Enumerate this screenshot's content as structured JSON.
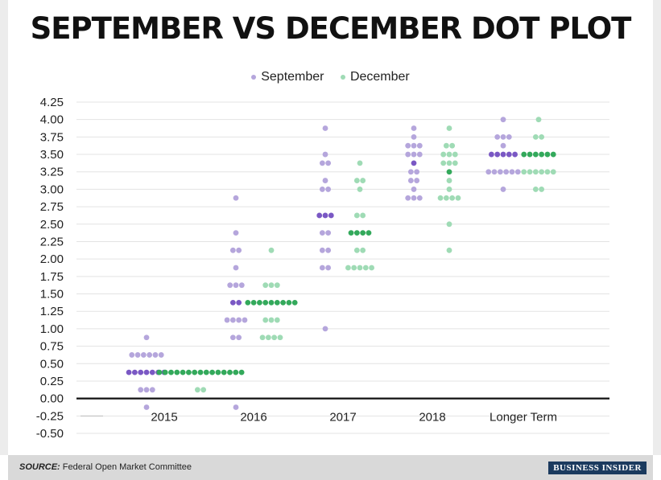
{
  "chart_data": {
    "type": "scatter",
    "title": "SEPTEMBER VS DECEMBER DOT PLOT",
    "ylim": [
      -0.5,
      4.25
    ],
    "yticks": [
      "4.25",
      "4.00",
      "3.75",
      "3.50",
      "3.25",
      "3.00",
      "2.75",
      "2.50",
      "2.25",
      "2.00",
      "1.75",
      "1.50",
      "1.25",
      "1.00",
      "0.75",
      "0.50",
      "0.25",
      "0.00",
      "-0.25",
      "-0.50"
    ],
    "categories": [
      "2015",
      "2016",
      "2017",
      "2018",
      "Longer Term"
    ],
    "grid": true,
    "legend_position": "top-center",
    "series": [
      {
        "name": "September",
        "color": "#b5a6dc",
        "median_color": "#7a58c4",
        "groups": [
          [
            {
              "y": 0.875,
              "n": 1
            },
            {
              "y": 0.625,
              "n": 6
            },
            {
              "y": 0.375,
              "n": 7,
              "median": true
            },
            {
              "y": 0.125,
              "n": 3
            },
            {
              "y": -0.125,
              "n": 1
            }
          ],
          [
            {
              "y": 2.875,
              "n": 1
            },
            {
              "y": 2.375,
              "n": 1
            },
            {
              "y": 2.125,
              "n": 2
            },
            {
              "y": 1.875,
              "n": 1
            },
            {
              "y": 1.625,
              "n": 3
            },
            {
              "y": 1.375,
              "n": 2,
              "median": true
            },
            {
              "y": 1.125,
              "n": 4
            },
            {
              "y": 0.875,
              "n": 2
            },
            {
              "y": -0.125,
              "n": 1
            }
          ],
          [
            {
              "y": 3.875,
              "n": 1
            },
            {
              "y": 3.5,
              "n": 1
            },
            {
              "y": 3.375,
              "n": 2
            },
            {
              "y": 3.125,
              "n": 1
            },
            {
              "y": 3.0,
              "n": 2
            },
            {
              "y": 2.625,
              "n": 3,
              "median": true
            },
            {
              "y": 2.375,
              "n": 2
            },
            {
              "y": 2.125,
              "n": 2
            },
            {
              "y": 1.875,
              "n": 2
            },
            {
              "y": 1.0,
              "n": 1
            }
          ],
          [
            {
              "y": 3.875,
              "n": 1
            },
            {
              "y": 3.75,
              "n": 1
            },
            {
              "y": 3.625,
              "n": 3
            },
            {
              "y": 3.5,
              "n": 3
            },
            {
              "y": 3.375,
              "n": 1,
              "median": true
            },
            {
              "y": 3.25,
              "n": 2
            },
            {
              "y": 3.125,
              "n": 2
            },
            {
              "y": 3.0,
              "n": 1
            },
            {
              "y": 2.875,
              "n": 3
            }
          ],
          [
            {
              "y": 4.0,
              "n": 1
            },
            {
              "y": 3.75,
              "n": 3
            },
            {
              "y": 3.625,
              "n": 1
            },
            {
              "y": 3.5,
              "n": 5,
              "median": true
            },
            {
              "y": 3.25,
              "n": 6
            },
            {
              "y": 3.0,
              "n": 1
            }
          ]
        ]
      },
      {
        "name": "December",
        "color": "#9fdbb5",
        "median_color": "#33a95b",
        "groups": [
          [
            {
              "y": 0.375,
              "n": 15,
              "median": true
            },
            {
              "y": 0.125,
              "n": 2
            }
          ],
          [
            {
              "y": 2.125,
              "n": 1
            },
            {
              "y": 1.625,
              "n": 3
            },
            {
              "y": 1.375,
              "n": 9,
              "median": true
            },
            {
              "y": 1.125,
              "n": 3
            },
            {
              "y": 0.875,
              "n": 4
            }
          ],
          [
            {
              "y": 3.375,
              "n": 1
            },
            {
              "y": 3.125,
              "n": 2
            },
            {
              "y": 3.0,
              "n": 1
            },
            {
              "y": 2.625,
              "n": 2
            },
            {
              "y": 2.375,
              "n": 4,
              "median": true
            },
            {
              "y": 2.125,
              "n": 2
            },
            {
              "y": 1.875,
              "n": 5
            }
          ],
          [
            {
              "y": 3.875,
              "n": 1
            },
            {
              "y": 3.625,
              "n": 2
            },
            {
              "y": 3.5,
              "n": 3
            },
            {
              "y": 3.375,
              "n": 3
            },
            {
              "y": 3.25,
              "n": 1,
              "median": true
            },
            {
              "y": 3.125,
              "n": 1
            },
            {
              "y": 3.0,
              "n": 1
            },
            {
              "y": 2.875,
              "n": 4
            },
            {
              "y": 2.5,
              "n": 1
            },
            {
              "y": 2.125,
              "n": 1
            }
          ],
          [
            {
              "y": 4.0,
              "n": 1
            },
            {
              "y": 3.75,
              "n": 2
            },
            {
              "y": 3.5,
              "n": 6,
              "median": true
            },
            {
              "y": 3.25,
              "n": 6
            },
            {
              "y": 3.0,
              "n": 2
            }
          ]
        ]
      }
    ]
  },
  "footer": {
    "source_label": "SOURCE:",
    "source_text": "Federal Open Market Committee",
    "brand": "BUSINESS INSIDER"
  }
}
